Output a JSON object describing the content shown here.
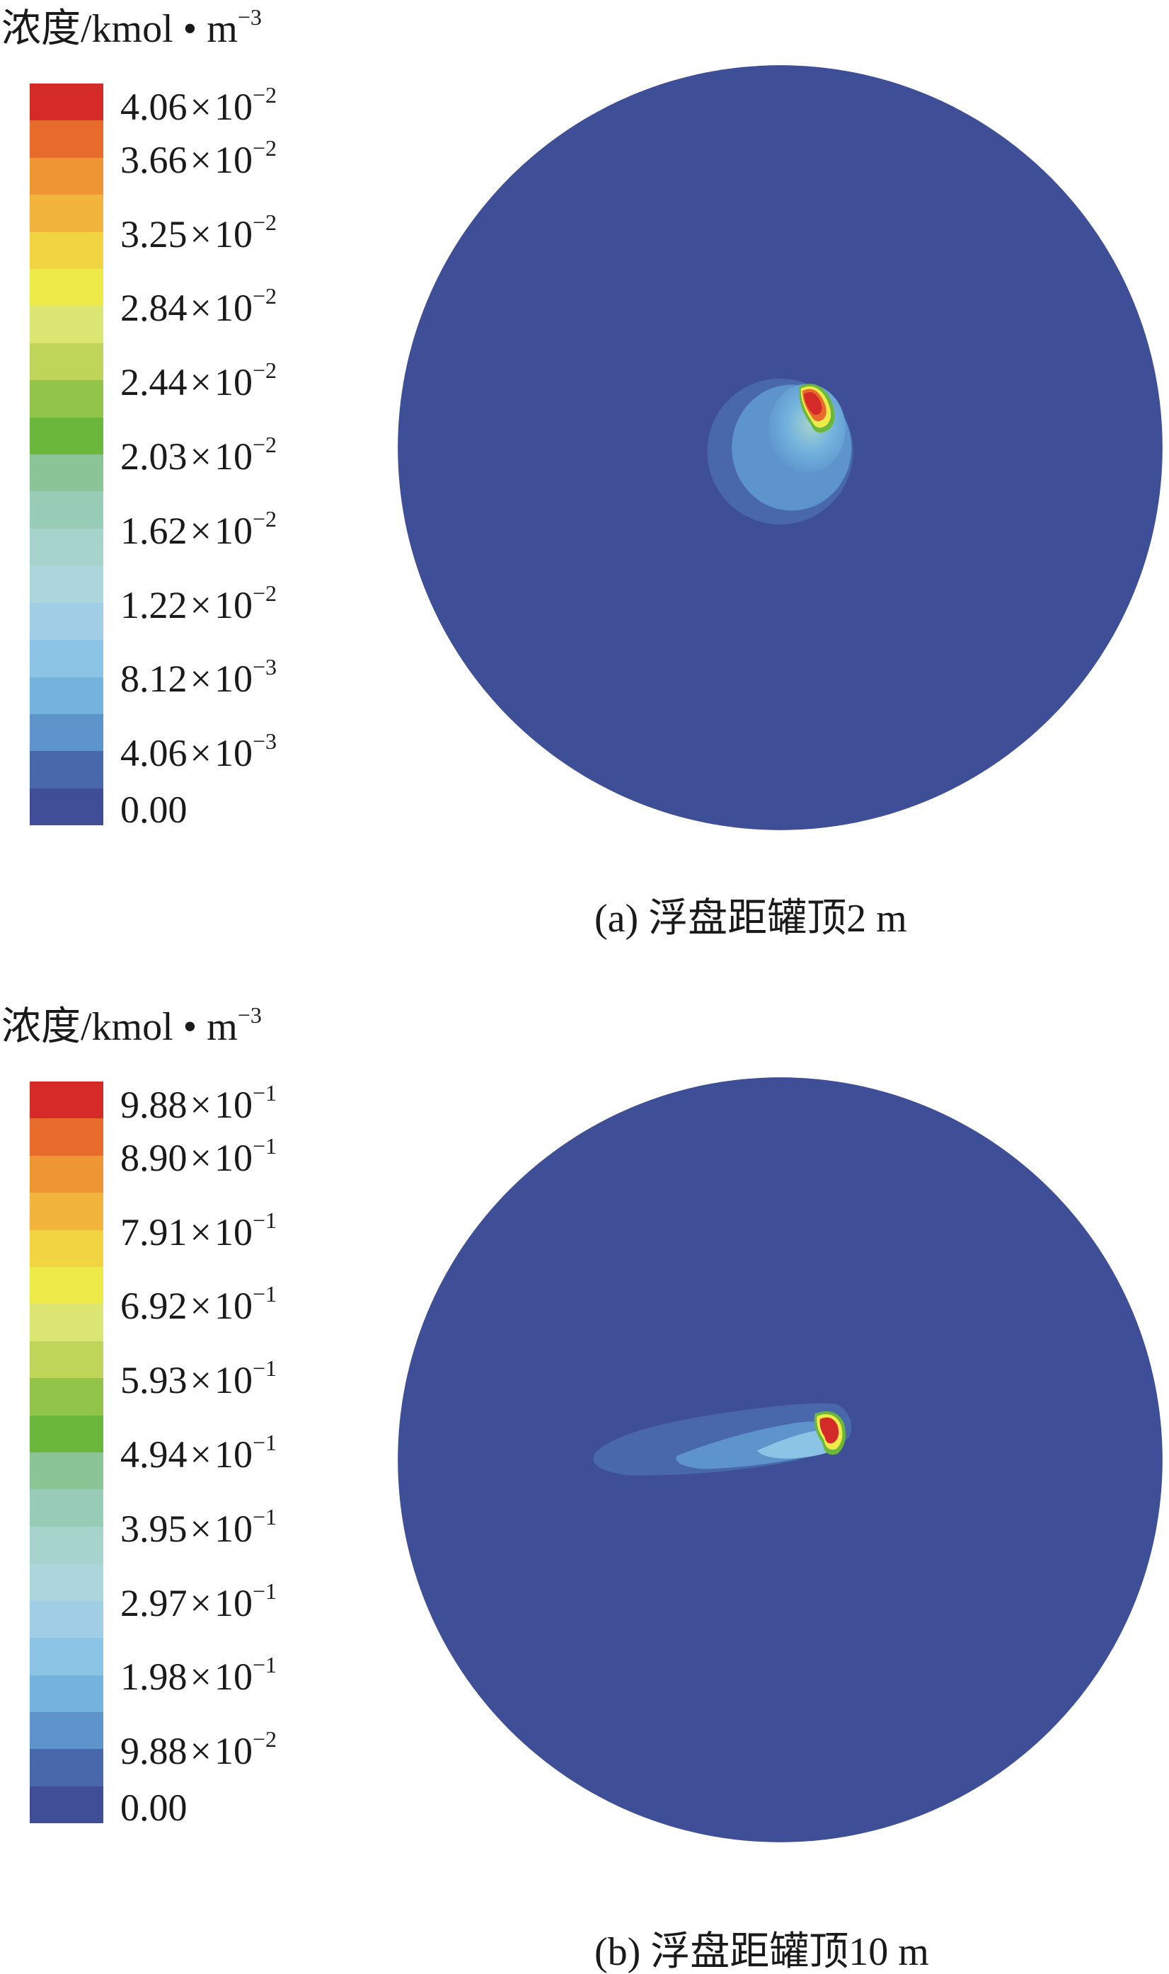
{
  "panels": [
    {
      "legend": {
        "title_prefix": "浓度/kmol • m",
        "title_exp": "−3",
        "ticks": [
          {
            "mantissa": "4.06",
            "times": "×",
            "base": "10",
            "exp": "−2"
          },
          {
            "mantissa": "3.66",
            "times": "×",
            "base": "10",
            "exp": "−2"
          },
          {
            "mantissa": "3.25",
            "times": "×",
            "base": "10",
            "exp": "−2"
          },
          {
            "mantissa": "2.84",
            "times": "×",
            "base": "10",
            "exp": "−2"
          },
          {
            "mantissa": "2.44",
            "times": "×",
            "base": "10",
            "exp": "−2"
          },
          {
            "mantissa": "2.03",
            "times": "×",
            "base": "10",
            "exp": "−2"
          },
          {
            "mantissa": "1.62",
            "times": "×",
            "base": "10",
            "exp": "−2"
          },
          {
            "mantissa": "1.22",
            "times": "×",
            "base": "10",
            "exp": "−2"
          },
          {
            "mantissa": "8.12",
            "times": "×",
            "base": "10",
            "exp": "−3"
          },
          {
            "mantissa": "4.06",
            "times": "×",
            "base": "10",
            "exp": "−3"
          },
          {
            "mantissa": "0.00",
            "times": "",
            "base": "",
            "exp": ""
          }
        ]
      },
      "caption": "(a) 浮盘距罐顶2 m"
    },
    {
      "legend": {
        "title_prefix": "浓度/kmol • m",
        "title_exp": "−3",
        "ticks": [
          {
            "mantissa": "9.88",
            "times": "×",
            "base": "10",
            "exp": "−1"
          },
          {
            "mantissa": "8.90",
            "times": "×",
            "base": "10",
            "exp": "−1"
          },
          {
            "mantissa": "7.91",
            "times": "×",
            "base": "10",
            "exp": "−1"
          },
          {
            "mantissa": "6.92",
            "times": "×",
            "base": "10",
            "exp": "−1"
          },
          {
            "mantissa": "5.93",
            "times": "×",
            "base": "10",
            "exp": "−1"
          },
          {
            "mantissa": "4.94",
            "times": "×",
            "base": "10",
            "exp": "−1"
          },
          {
            "mantissa": "3.95",
            "times": "×",
            "base": "10",
            "exp": "−1"
          },
          {
            "mantissa": "2.97",
            "times": "×",
            "base": "10",
            "exp": "−1"
          },
          {
            "mantissa": "1.98",
            "times": "×",
            "base": "10",
            "exp": "−1"
          },
          {
            "mantissa": "9.88",
            "times": "×",
            "base": "10",
            "exp": "−2"
          },
          {
            "mantissa": "0.00",
            "times": "",
            "base": "",
            "exp": ""
          }
        ]
      },
      "caption": "(b) 浮盘距罐顶10 m"
    }
  ],
  "colormap": [
    "#d42a28",
    "#e76c2c",
    "#ee9633",
    "#f2b43c",
    "#f2d341",
    "#eeea4a",
    "#dce672",
    "#bfd55a",
    "#92c449",
    "#6bb73c",
    "#8bc495",
    "#99ccb6",
    "#a6d3cc",
    "#add5dc",
    "#a1cde5",
    "#8cc4e6",
    "#74b3de",
    "#5c94cb",
    "#4968ab",
    "#3f4e96"
  ],
  "background_color": "#3f4f97"
}
